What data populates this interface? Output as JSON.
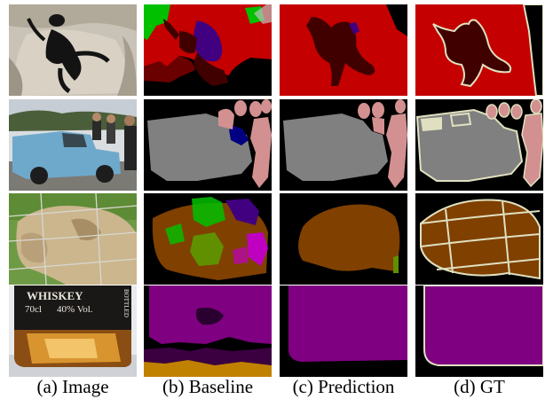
{
  "figure": {
    "columns": [
      {
        "label": "(a) Image"
      },
      {
        "label": "(b) Baseline"
      },
      {
        "label": "(c) Prediction"
      },
      {
        "label": "(d) GT"
      }
    ],
    "rows": [
      {
        "subject": "cat on sofa"
      },
      {
        "subject": "vintage pickup truck with people"
      },
      {
        "subject": "sheep behind wire fence"
      },
      {
        "subject": "whiskey bottle"
      }
    ],
    "bottle_label": {
      "line1": "WHISKEY",
      "line2": "70cl",
      "line3": "40% Vol.",
      "side": "BOTTLED"
    },
    "colors": {
      "background": "#000000",
      "cat": "#400000",
      "sofa": "#c40000",
      "person": "#d39090",
      "car": "#808080",
      "sheep": "#7f4000",
      "bottle": "#7f0080",
      "table": "#c08000",
      "chair": "#c00000",
      "plant": "#00c000",
      "boundary": "#e0e0c0"
    }
  }
}
